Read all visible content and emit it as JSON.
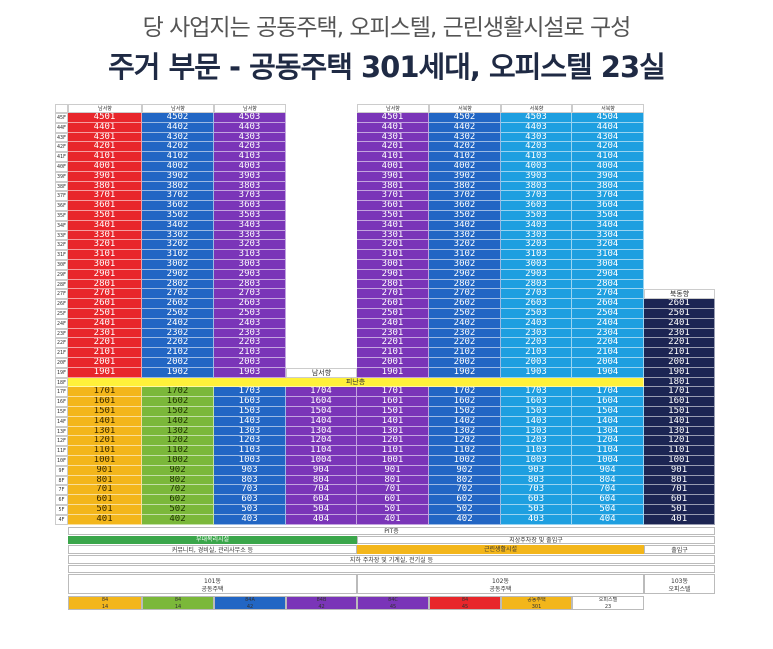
{
  "header": {
    "subtitle": "당 사업지는 공동주택, 오피스텔, 근린생활시설로 구성",
    "title": "주거 부문 - 공동주택 301세대, 오피스텔 23실"
  },
  "colors": {
    "red": "#e8262b",
    "blue": "#2266c4",
    "purple": "#7a35b8",
    "sky": "#1e9fe0",
    "navy": "#1c2553",
    "orange": "#f3b61b",
    "green": "#7bb83a",
    "light_blue": "#35a6e2",
    "yellow": "#fff13a"
  },
  "building": {
    "left_header_labels": [
      "남서향",
      "남서향",
      "남서향"
    ],
    "right_header_labels": [
      "남서향",
      "서북향",
      "서북향",
      "서북향"
    ],
    "east_label": "북동향",
    "officetel_label": "남서향",
    "pilotis_label": "피난층",
    "upper_floors": [
      {
        "floor": "45F",
        "units": [
          "4501",
          "4502",
          "4503",
          "",
          "4501",
          "4502",
          "4503",
          "4504",
          ""
        ]
      },
      {
        "floor": "44F",
        "units": [
          "4401",
          "4402",
          "4403",
          "",
          "4401",
          "4402",
          "4403",
          "4404",
          ""
        ]
      },
      {
        "floor": "43F",
        "units": [
          "4301",
          "4302",
          "4303",
          "",
          "4301",
          "4302",
          "4303",
          "4304",
          ""
        ]
      },
      {
        "floor": "42F",
        "units": [
          "4201",
          "4202",
          "4203",
          "",
          "4201",
          "4202",
          "4203",
          "4204",
          ""
        ]
      },
      {
        "floor": "41F",
        "units": [
          "4101",
          "4102",
          "4103",
          "",
          "4101",
          "4102",
          "4103",
          "4104",
          ""
        ]
      },
      {
        "floor": "40F",
        "units": [
          "4001",
          "4002",
          "4003",
          "",
          "4001",
          "4002",
          "4003",
          "4004",
          ""
        ]
      },
      {
        "floor": "39F",
        "units": [
          "3901",
          "3902",
          "3903",
          "",
          "3901",
          "3902",
          "3903",
          "3904",
          ""
        ]
      },
      {
        "floor": "38F",
        "units": [
          "3801",
          "3802",
          "3803",
          "",
          "3801",
          "3802",
          "3803",
          "3804",
          ""
        ]
      },
      {
        "floor": "37F",
        "units": [
          "3701",
          "3702",
          "3703",
          "",
          "3701",
          "3702",
          "3703",
          "3704",
          ""
        ]
      },
      {
        "floor": "36F",
        "units": [
          "3601",
          "3602",
          "3603",
          "",
          "3601",
          "3602",
          "3603",
          "3604",
          ""
        ]
      },
      {
        "floor": "35F",
        "units": [
          "3501",
          "3502",
          "3503",
          "",
          "3501",
          "3502",
          "3503",
          "3504",
          ""
        ]
      },
      {
        "floor": "34F",
        "units": [
          "3401",
          "3402",
          "3403",
          "",
          "3401",
          "3402",
          "3403",
          "3404",
          ""
        ]
      },
      {
        "floor": "33F",
        "units": [
          "3301",
          "3302",
          "3303",
          "",
          "3301",
          "3302",
          "3303",
          "3304",
          ""
        ]
      },
      {
        "floor": "32F",
        "units": [
          "3201",
          "3202",
          "3203",
          "",
          "3201",
          "3202",
          "3203",
          "3204",
          ""
        ]
      },
      {
        "floor": "31F",
        "units": [
          "3101",
          "3102",
          "3103",
          "",
          "3101",
          "3102",
          "3103",
          "3104",
          ""
        ]
      },
      {
        "floor": "30F",
        "units": [
          "3001",
          "3002",
          "3003",
          "",
          "3001",
          "3002",
          "3003",
          "3004",
          ""
        ]
      },
      {
        "floor": "29F",
        "units": [
          "2901",
          "2902",
          "2903",
          "",
          "2901",
          "2902",
          "2903",
          "2904",
          ""
        ]
      },
      {
        "floor": "28F",
        "units": [
          "2801",
          "2802",
          "2803",
          "",
          "2801",
          "2802",
          "2803",
          "2804",
          ""
        ]
      },
      {
        "floor": "27F",
        "units": [
          "2701",
          "2702",
          "2703",
          "",
          "2701",
          "2702",
          "2703",
          "2704",
          "북동향"
        ]
      },
      {
        "floor": "26F",
        "units": [
          "2601",
          "2602",
          "2603",
          "",
          "2601",
          "2602",
          "2603",
          "2604",
          "2601"
        ]
      },
      {
        "floor": "25F",
        "units": [
          "2501",
          "2502",
          "2503",
          "",
          "2501",
          "2502",
          "2503",
          "2504",
          "2501"
        ]
      },
      {
        "floor": "24F",
        "units": [
          "2401",
          "2402",
          "2403",
          "",
          "2401",
          "2402",
          "2403",
          "2404",
          "2401"
        ]
      },
      {
        "floor": "23F",
        "units": [
          "2301",
          "2302",
          "2303",
          "",
          "2301",
          "2302",
          "2303",
          "2304",
          "2301"
        ]
      },
      {
        "floor": "22F",
        "units": [
          "2201",
          "2202",
          "2203",
          "",
          "2201",
          "2202",
          "2203",
          "2204",
          "2201"
        ]
      },
      {
        "floor": "21F",
        "units": [
          "2101",
          "2102",
          "2103",
          "",
          "2101",
          "2102",
          "2103",
          "2104",
          "2101"
        ]
      },
      {
        "floor": "20F",
        "units": [
          "2001",
          "2002",
          "2003",
          "",
          "2001",
          "2002",
          "2003",
          "2004",
          "2001"
        ]
      },
      {
        "floor": "19F",
        "units": [
          "1901",
          "1902",
          "1903",
          "남서향",
          "1901",
          "1902",
          "1903",
          "1904",
          "1901"
        ]
      }
    ],
    "pilotis_floor": {
      "floor": "18F",
      "units": [
        "",
        "",
        "",
        "",
        "",
        "",
        "",
        "",
        "1801"
      ]
    },
    "lower_floors": [
      {
        "floor": "17F",
        "units": [
          "1701",
          "1702",
          "1703",
          "1704",
          "1701",
          "1702",
          "1703",
          "1704",
          "1701"
        ]
      },
      {
        "floor": "16F",
        "units": [
          "1601",
          "1602",
          "1603",
          "1604",
          "1601",
          "1602",
          "1603",
          "1604",
          "1601"
        ]
      },
      {
        "floor": "15F",
        "units": [
          "1501",
          "1502",
          "1503",
          "1504",
          "1501",
          "1502",
          "1503",
          "1504",
          "1501"
        ]
      },
      {
        "floor": "14F",
        "units": [
          "1401",
          "1402",
          "1403",
          "1404",
          "1401",
          "1402",
          "1403",
          "1404",
          "1401"
        ]
      },
      {
        "floor": "13F",
        "units": [
          "1301",
          "1302",
          "1303",
          "1304",
          "1301",
          "1302",
          "1303",
          "1304",
          "1301"
        ]
      },
      {
        "floor": "12F",
        "units": [
          "1201",
          "1202",
          "1203",
          "1204",
          "1201",
          "1202",
          "1203",
          "1204",
          "1201"
        ]
      },
      {
        "floor": "11F",
        "units": [
          "1101",
          "1102",
          "1103",
          "1104",
          "1101",
          "1102",
          "1103",
          "1104",
          "1101"
        ]
      },
      {
        "floor": "10F",
        "units": [
          "1001",
          "1002",
          "1003",
          "1004",
          "1001",
          "1002",
          "1003",
          "1004",
          "1001"
        ]
      },
      {
        "floor": "9F",
        "units": [
          "901",
          "902",
          "903",
          "904",
          "901",
          "902",
          "903",
          "904",
          "901"
        ]
      },
      {
        "floor": "8F",
        "units": [
          "801",
          "802",
          "803",
          "804",
          "801",
          "802",
          "803",
          "804",
          "801"
        ]
      },
      {
        "floor": "7F",
        "units": [
          "701",
          "702",
          "703",
          "704",
          "701",
          "702",
          "703",
          "704",
          "701"
        ]
      },
      {
        "floor": "6F",
        "units": [
          "601",
          "602",
          "603",
          "604",
          "601",
          "602",
          "603",
          "604",
          "601"
        ]
      },
      {
        "floor": "5F",
        "units": [
          "501",
          "502",
          "503",
          "504",
          "501",
          "502",
          "503",
          "504",
          "501"
        ]
      },
      {
        "floor": "4F",
        "units": [
          "401",
          "402",
          "403",
          "404",
          "401",
          "402",
          "403",
          "404",
          "401"
        ]
      }
    ]
  },
  "base": {
    "pit_label": "PIT층",
    "left_green_label": "부대복리시설",
    "right_service_label": "지상주차장 및 출입구",
    "left_amenities_label": "커뮤니티, 경비실, 관리사무소 등",
    "right_orange_label": "근린생활시설",
    "right_end_label": "출입구",
    "parking_label": "지하 주차장 및 기계실, 전기실 등",
    "dong_left_label": "101동",
    "dong_left_sub": "공동주택",
    "dong_right_label": "102동",
    "dong_right_sub": "공동주택",
    "dong_officetel_label": "103동",
    "dong_officetel_sub": "오피스텔"
  },
  "legend": [
    {
      "code": "84",
      "count": "14"
    },
    {
      "code": "84",
      "count": "14"
    },
    {
      "code": "84A",
      "count": "42"
    },
    {
      "code": "84B",
      "count": "42"
    },
    {
      "code": "84C",
      "count": "45"
    },
    {
      "code": "84",
      "count": "45"
    },
    {
      "code": "공동주택",
      "count": "301"
    },
    {
      "code": "오피스텔",
      "count": "23"
    }
  ]
}
